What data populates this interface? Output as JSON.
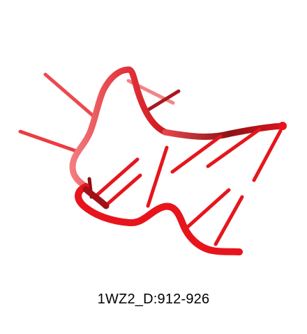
{
  "caption": "1WZ2_D:912-926",
  "colors": {
    "background": "#ffffff",
    "backbone": "#e8141c",
    "backbone_dark": "#8c0d12",
    "backbone_light": "#f07a7e"
  }
}
